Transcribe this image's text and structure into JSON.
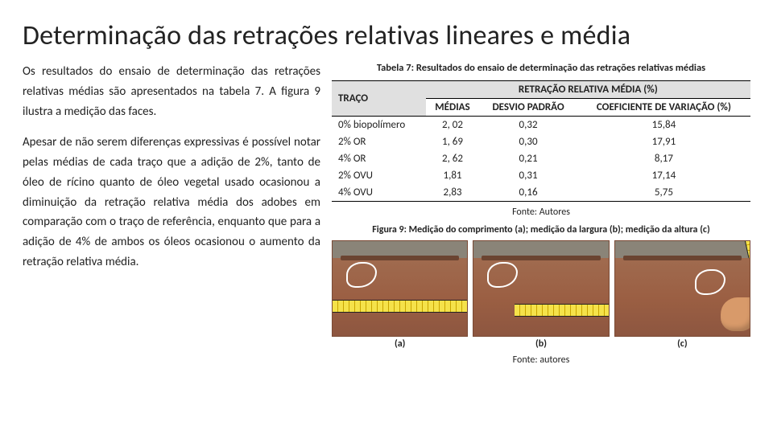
{
  "title": "Determinação das retrações relativas lineares e média",
  "left": {
    "p1": "Os resultados do ensaio de determinação das retrações relativas médias são apresentados na tabela 7. A figura 9 ilustra a medição das faces.",
    "p2": "Apesar de não serem diferenças expressivas é possível notar pelas médias de cada traço que a adição de 2%, tanto de óleo de rícino quanto de óleo vegetal usado ocasionou a diminuição da retração relativa média dos adobes em comparação com o traço de referência, enquanto que para a adição de 4% de ambos os óleos ocasionou o aumento da retração relativa média."
  },
  "table": {
    "caption": "Tabela 7: Resultados do ensaio de determinação das retrações relativas médias",
    "header": {
      "traco": "TRAÇO",
      "group": "RETRAÇÃO RELATIVA MÉDIA (%)",
      "medias": "MÉDIAS",
      "desvio": "DESVIO PADRÃO",
      "coef": "COEFICIENTE DE VARIAÇÃO (%)"
    },
    "rows": [
      {
        "traco": "0% biopolímero",
        "m": "2, 02",
        "d": "0,32",
        "c": "15,84"
      },
      {
        "traco": "2% OR",
        "m": "1, 69",
        "d": "0,30",
        "c": "17,91"
      },
      {
        "traco": "4% OR",
        "m": "2, 62",
        "d": "0,21",
        "c": "8,17"
      },
      {
        "traco": "2% OVU",
        "m": "1,81",
        "d": "0,31",
        "c": "17,14"
      },
      {
        "traco": "4% OVU",
        "m": "2,83",
        "d": "0,16",
        "c": "5,75"
      }
    ],
    "fonte": "Fonte: Autores"
  },
  "figure": {
    "caption": "Figura 9: Medição do comprimento (a); medição da largura (b); medição da altura (c)",
    "labels": [
      "(a)",
      "(b)",
      "(c)"
    ],
    "fonte": "Fonte: autores"
  }
}
